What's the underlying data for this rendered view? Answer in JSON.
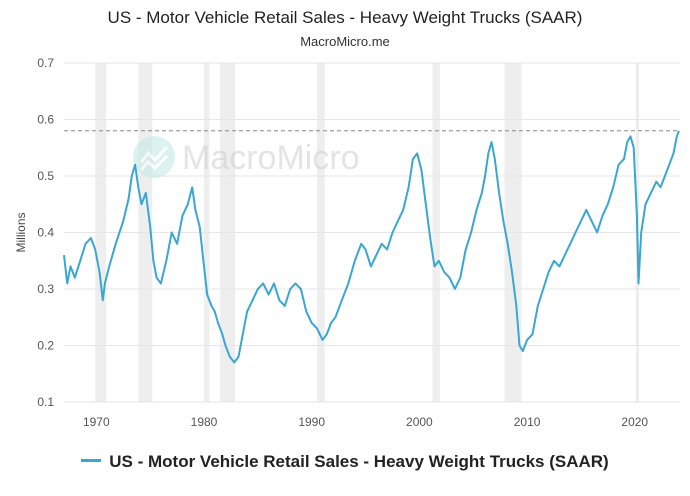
{
  "title": "US - Motor Vehicle Retail Sales - Heavy Weight Trucks (SAAR)",
  "subtitle": "MacroMicro.me",
  "watermark": "MacroMicro",
  "colors": {
    "line": "#3aa6d2",
    "recession": "#eeeeee",
    "grid": "#e6e6e6",
    "reference": "#888888"
  },
  "chart_data": {
    "type": "line",
    "title": "US - Motor Vehicle Retail Sales - Heavy Weight Trucks (SAAR)",
    "xlabel": "",
    "ylabel": "Millions",
    "xlim": [
      1967,
      2024.2
    ],
    "ylim": [
      0.1,
      0.7
    ],
    "yticks": [
      0.1,
      0.2,
      0.3,
      0.4,
      0.5,
      0.6,
      0.7
    ],
    "xticks": [
      1970,
      1980,
      1990,
      2000,
      2010,
      2020
    ],
    "reference_line": 0.58,
    "recessions": [
      [
        1969.9,
        1970.9
      ],
      [
        1973.9,
        1975.2
      ],
      [
        1980.0,
        1980.5
      ],
      [
        1981.5,
        1982.9
      ],
      [
        1990.5,
        1991.2
      ],
      [
        2001.2,
        2001.9
      ],
      [
        2007.9,
        2009.5
      ],
      [
        2020.1,
        2020.4
      ]
    ],
    "series": [
      {
        "name": "US - Motor Vehicle Retail Sales - Heavy Weight Trucks (SAAR)",
        "x": [
          1967.0,
          1967.3,
          1967.6,
          1968.0,
          1968.5,
          1969.0,
          1969.5,
          1969.9,
          1970.3,
          1970.6,
          1970.8,
          1971.2,
          1971.8,
          1972.5,
          1973.0,
          1973.3,
          1973.6,
          1973.9,
          1974.2,
          1974.6,
          1975.0,
          1975.3,
          1975.6,
          1976.0,
          1976.5,
          1977.0,
          1977.5,
          1978.0,
          1978.5,
          1978.9,
          1979.2,
          1979.6,
          1980.0,
          1980.3,
          1980.7,
          1981.0,
          1981.3,
          1981.7,
          1982.0,
          1982.4,
          1982.8,
          1983.2,
          1983.6,
          1984.0,
          1984.5,
          1985.0,
          1985.5,
          1986.0,
          1986.5,
          1987.0,
          1987.5,
          1988.0,
          1988.5,
          1989.0,
          1989.5,
          1990.0,
          1990.5,
          1991.0,
          1991.4,
          1991.8,
          1992.2,
          1992.8,
          1993.4,
          1994.0,
          1994.6,
          1995.0,
          1995.5,
          1996.0,
          1996.5,
          1997.0,
          1997.5,
          1998.0,
          1998.5,
          1999.0,
          1999.4,
          1999.8,
          2000.2,
          2000.6,
          2001.0,
          2001.4,
          2001.8,
          2002.3,
          2002.8,
          2003.3,
          2003.8,
          2004.3,
          2004.8,
          2005.3,
          2005.8,
          2006.1,
          2006.4,
          2006.7,
          2007.0,
          2007.4,
          2007.8,
          2008.2,
          2008.6,
          2009.0,
          2009.3,
          2009.6,
          2010.0,
          2010.5,
          2011.0,
          2011.5,
          2012.0,
          2012.5,
          2013.0,
          2013.5,
          2014.0,
          2014.5,
          2015.0,
          2015.5,
          2016.0,
          2016.5,
          2017.0,
          2017.5,
          2018.0,
          2018.5,
          2019.0,
          2019.3,
          2019.6,
          2019.9,
          2020.2,
          2020.35,
          2020.6,
          2021.0,
          2021.5,
          2022.0,
          2022.4,
          2022.8,
          2023.2,
          2023.6,
          2023.9,
          2024.1
        ],
        "values": [
          0.36,
          0.31,
          0.34,
          0.32,
          0.35,
          0.38,
          0.39,
          0.37,
          0.33,
          0.28,
          0.31,
          0.34,
          0.38,
          0.42,
          0.46,
          0.5,
          0.52,
          0.48,
          0.45,
          0.47,
          0.41,
          0.35,
          0.32,
          0.31,
          0.35,
          0.4,
          0.38,
          0.43,
          0.45,
          0.48,
          0.44,
          0.41,
          0.34,
          0.29,
          0.27,
          0.26,
          0.24,
          0.22,
          0.2,
          0.18,
          0.17,
          0.18,
          0.22,
          0.26,
          0.28,
          0.3,
          0.31,
          0.29,
          0.31,
          0.28,
          0.27,
          0.3,
          0.31,
          0.3,
          0.26,
          0.24,
          0.23,
          0.21,
          0.22,
          0.24,
          0.25,
          0.28,
          0.31,
          0.35,
          0.38,
          0.37,
          0.34,
          0.36,
          0.38,
          0.37,
          0.4,
          0.42,
          0.44,
          0.48,
          0.53,
          0.54,
          0.51,
          0.45,
          0.39,
          0.34,
          0.35,
          0.33,
          0.32,
          0.3,
          0.32,
          0.37,
          0.4,
          0.44,
          0.47,
          0.5,
          0.54,
          0.56,
          0.53,
          0.47,
          0.42,
          0.38,
          0.33,
          0.27,
          0.2,
          0.19,
          0.21,
          0.22,
          0.27,
          0.3,
          0.33,
          0.35,
          0.34,
          0.36,
          0.38,
          0.4,
          0.42,
          0.44,
          0.42,
          0.4,
          0.43,
          0.45,
          0.48,
          0.52,
          0.53,
          0.56,
          0.57,
          0.55,
          0.43,
          0.31,
          0.4,
          0.45,
          0.47,
          0.49,
          0.48,
          0.5,
          0.52,
          0.54,
          0.57,
          0.58
        ]
      }
    ]
  },
  "legend": {
    "label": "US - Motor Vehicle Retail Sales - Heavy Weight Trucks (SAAR)"
  }
}
